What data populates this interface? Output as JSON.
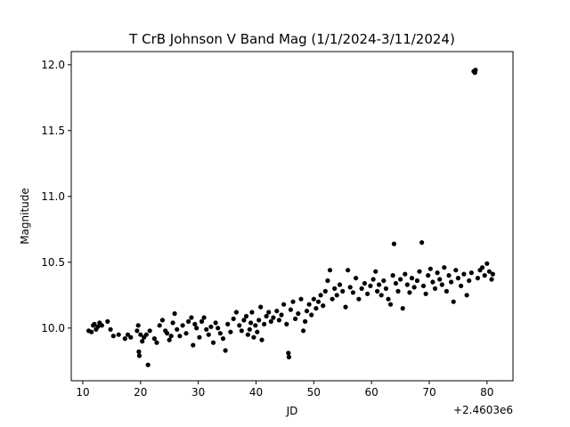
{
  "chart_data": {
    "type": "scatter",
    "title": "T CrB Johnson V Band Mag (1/1/2024-3/11/2024)",
    "xlabel": "JD",
    "ylabel": "Magnitude",
    "x_offset_label": "+2.4603e6",
    "xlim": [
      8,
      84.5
    ],
    "ylim": [
      9.6,
      12.1
    ],
    "grid": false,
    "legend": "none",
    "marker_color": "#000000",
    "xticks": [
      10,
      20,
      30,
      40,
      50,
      60,
      70,
      80
    ],
    "xtick_labels": [
      "10",
      "20",
      "30",
      "40",
      "50",
      "60",
      "70",
      "80"
    ],
    "yticks": [
      10.0,
      10.5,
      11.0,
      11.5,
      12.0
    ],
    "ytick_labels": [
      "10.0",
      "10.5",
      "11.0",
      "11.5",
      "12.0"
    ],
    "series": [
      {
        "points": [
          [
            11.0,
            9.98
          ],
          [
            11.5,
            9.97
          ],
          [
            11.8,
            10.02
          ],
          [
            12.0,
            10.03
          ],
          [
            12.3,
            9.99
          ],
          [
            12.6,
            10.01
          ],
          [
            12.9,
            10.04
          ],
          [
            13.3,
            10.02
          ],
          [
            14.3,
            10.05
          ],
          [
            14.8,
            9.99
          ],
          [
            15.3,
            9.94
          ],
          [
            16.2,
            9.95
          ],
          [
            17.3,
            9.92
          ],
          [
            17.8,
            9.95
          ],
          [
            18.3,
            9.93
          ],
          [
            19.4,
            9.98
          ],
          [
            19.6,
            10.02
          ],
          [
            19.7,
            9.82
          ],
          [
            19.8,
            9.79
          ],
          [
            20.0,
            9.95
          ],
          [
            20.3,
            9.9
          ],
          [
            20.6,
            9.93
          ],
          [
            21.0,
            9.95
          ],
          [
            21.3,
            9.72
          ],
          [
            21.6,
            9.98
          ],
          [
            22.4,
            9.92
          ],
          [
            22.8,
            9.89
          ],
          [
            23.3,
            10.02
          ],
          [
            23.8,
            10.06
          ],
          [
            24.3,
            9.98
          ],
          [
            24.6,
            9.96
          ],
          [
            25.0,
            9.91
          ],
          [
            25.3,
            9.94
          ],
          [
            25.6,
            10.04
          ],
          [
            25.9,
            10.11
          ],
          [
            26.3,
            9.99
          ],
          [
            26.8,
            9.94
          ],
          [
            27.3,
            10.02
          ],
          [
            27.9,
            9.96
          ],
          [
            28.3,
            10.05
          ],
          [
            28.8,
            10.08
          ],
          [
            29.1,
            9.87
          ],
          [
            29.4,
            10.03
          ],
          [
            29.7,
            10.0
          ],
          [
            30.2,
            9.93
          ],
          [
            30.6,
            10.05
          ],
          [
            31.0,
            10.08
          ],
          [
            31.4,
            9.99
          ],
          [
            31.8,
            9.95
          ],
          [
            32.2,
            10.01
          ],
          [
            32.6,
            9.89
          ],
          [
            33.0,
            10.04
          ],
          [
            33.4,
            10.0
          ],
          [
            33.8,
            9.96
          ],
          [
            34.3,
            9.92
          ],
          [
            34.7,
            9.83
          ],
          [
            35.1,
            10.03
          ],
          [
            35.6,
            9.97
          ],
          [
            36.1,
            10.07
          ],
          [
            36.6,
            10.12
          ],
          [
            37.1,
            10.02
          ],
          [
            37.5,
            9.98
          ],
          [
            37.9,
            10.06
          ],
          [
            38.3,
            10.09
          ],
          [
            38.6,
            9.95
          ],
          [
            38.9,
            9.99
          ],
          [
            39.1,
            10.04
          ],
          [
            39.3,
            10.12
          ],
          [
            39.6,
            9.93
          ],
          [
            39.9,
            10.02
          ],
          [
            40.2,
            9.97
          ],
          [
            40.5,
            10.06
          ],
          [
            40.8,
            10.16
          ],
          [
            41.0,
            9.91
          ],
          [
            41.4,
            10.03
          ],
          [
            41.8,
            10.09
          ],
          [
            42.2,
            10.12
          ],
          [
            42.6,
            10.05
          ],
          [
            43.0,
            10.08
          ],
          [
            43.6,
            10.13
          ],
          [
            44.0,
            10.06
          ],
          [
            44.4,
            10.1
          ],
          [
            44.8,
            10.18
          ],
          [
            45.3,
            10.03
          ],
          [
            45.6,
            9.81
          ],
          [
            45.7,
            9.78
          ],
          [
            46.0,
            10.14
          ],
          [
            46.4,
            10.2
          ],
          [
            46.8,
            10.07
          ],
          [
            47.3,
            10.11
          ],
          [
            47.8,
            10.22
          ],
          [
            48.2,
            9.98
          ],
          [
            48.5,
            10.05
          ],
          [
            48.8,
            10.13
          ],
          [
            49.2,
            10.18
          ],
          [
            49.6,
            10.1
          ],
          [
            50.0,
            10.22
          ],
          [
            50.4,
            10.15
          ],
          [
            50.8,
            10.2
          ],
          [
            51.2,
            10.25
          ],
          [
            51.6,
            10.17
          ],
          [
            52.0,
            10.28
          ],
          [
            52.4,
            10.36
          ],
          [
            52.8,
            10.44
          ],
          [
            53.2,
            10.22
          ],
          [
            53.6,
            10.3
          ],
          [
            54.0,
            10.25
          ],
          [
            54.5,
            10.33
          ],
          [
            55.0,
            10.28
          ],
          [
            55.5,
            10.16
          ],
          [
            55.9,
            10.44
          ],
          [
            56.3,
            10.31
          ],
          [
            56.8,
            10.27
          ],
          [
            57.3,
            10.38
          ],
          [
            57.8,
            10.22
          ],
          [
            58.3,
            10.3
          ],
          [
            58.8,
            10.34
          ],
          [
            59.3,
            10.26
          ],
          [
            59.8,
            10.32
          ],
          [
            60.3,
            10.37
          ],
          [
            60.7,
            10.43
          ],
          [
            61.0,
            10.28
          ],
          [
            61.3,
            10.33
          ],
          [
            61.7,
            10.25
          ],
          [
            62.1,
            10.36
          ],
          [
            62.5,
            10.3
          ],
          [
            62.9,
            10.22
          ],
          [
            63.3,
            10.18
          ],
          [
            63.7,
            10.4
          ],
          [
            63.9,
            10.64
          ],
          [
            64.2,
            10.34
          ],
          [
            64.6,
            10.28
          ],
          [
            65.0,
            10.37
          ],
          [
            65.4,
            10.15
          ],
          [
            65.8,
            10.41
          ],
          [
            66.2,
            10.33
          ],
          [
            66.6,
            10.27
          ],
          [
            67.0,
            10.38
          ],
          [
            67.4,
            10.31
          ],
          [
            67.9,
            10.36
          ],
          [
            68.3,
            10.43
          ],
          [
            68.7,
            10.65
          ],
          [
            69.0,
            10.32
          ],
          [
            69.4,
            10.26
          ],
          [
            69.8,
            10.4
          ],
          [
            70.2,
            10.45
          ],
          [
            70.6,
            10.35
          ],
          [
            71.0,
            10.3
          ],
          [
            71.4,
            10.42
          ],
          [
            71.8,
            10.37
          ],
          [
            72.2,
            10.33
          ],
          [
            72.6,
            10.46
          ],
          [
            73.0,
            10.28
          ],
          [
            73.4,
            10.4
          ],
          [
            73.8,
            10.35
          ],
          [
            74.2,
            10.2
          ],
          [
            74.6,
            10.44
          ],
          [
            75.0,
            10.38
          ],
          [
            75.5,
            10.32
          ],
          [
            76.0,
            10.41
          ],
          [
            76.5,
            10.25
          ],
          [
            76.9,
            10.36
          ],
          [
            77.3,
            10.42
          ],
          [
            77.7,
            11.95
          ],
          [
            77.9,
            11.94
          ],
          [
            78.0,
            11.96
          ],
          [
            78.4,
            10.38
          ],
          [
            78.8,
            10.44
          ],
          [
            79.2,
            10.46
          ],
          [
            79.6,
            10.4
          ],
          [
            80.0,
            10.49
          ],
          [
            80.4,
            10.43
          ],
          [
            80.8,
            10.37
          ],
          [
            81.0,
            10.41
          ]
        ]
      }
    ]
  }
}
